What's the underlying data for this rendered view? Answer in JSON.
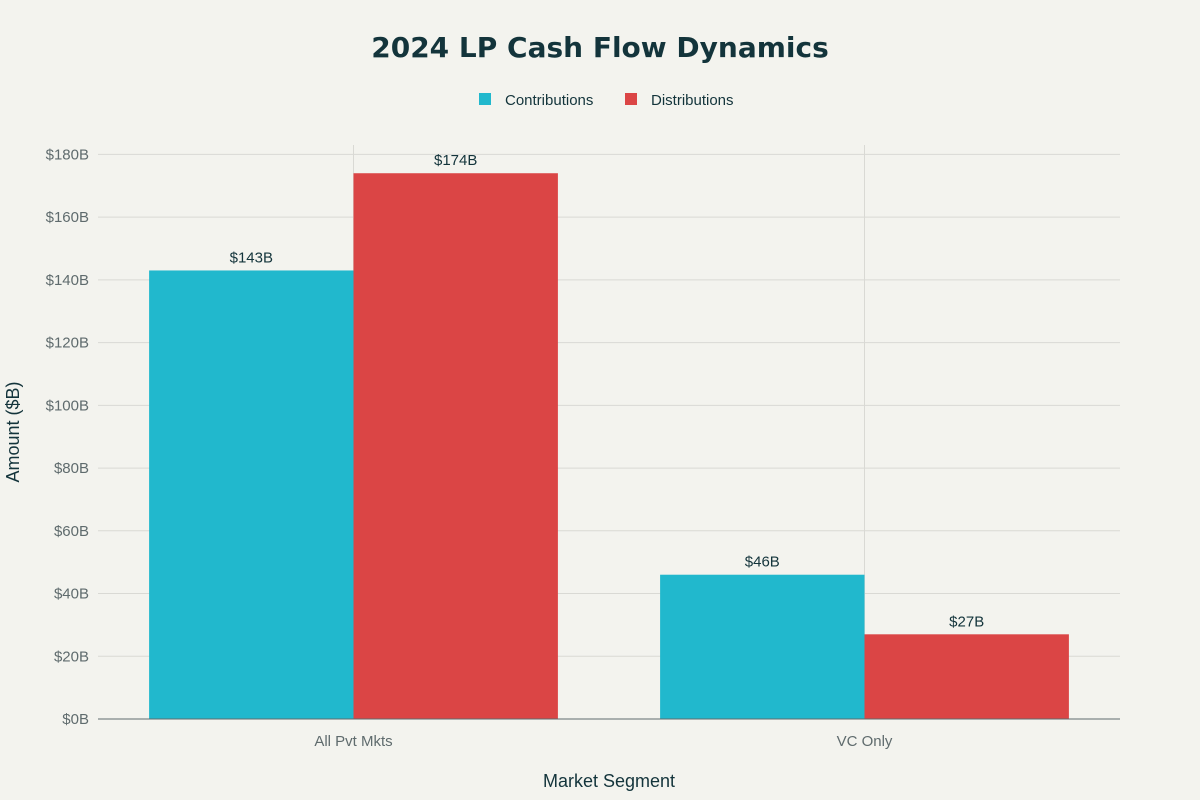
{
  "chart_data": {
    "type": "bar",
    "title": "2024 LP Cash Flow Dynamics",
    "xlabel": "Market Segment",
    "ylabel": "Amount ($B)",
    "categories": [
      "All Pvt Mkts",
      "VC Only"
    ],
    "series": [
      {
        "name": "Contributions",
        "values": [
          143,
          46
        ],
        "labels": [
          "$143B",
          "$46B"
        ],
        "color": "#21B8CD"
      },
      {
        "name": "Distributions",
        "values": [
          174,
          27
        ],
        "labels": [
          "$174B",
          "$27B"
        ],
        "color": "#DB4545"
      }
    ],
    "ylim": [
      0,
      183
    ],
    "yticks": [
      0,
      20,
      40,
      60,
      80,
      100,
      120,
      140,
      160,
      180
    ],
    "ytick_labels": [
      "$0B",
      "$20B",
      "$40B",
      "$60B",
      "$80B",
      "$100B",
      "$120B",
      "$140B",
      "$160B",
      "$180B"
    ],
    "grid": true,
    "legend": "top-center"
  }
}
